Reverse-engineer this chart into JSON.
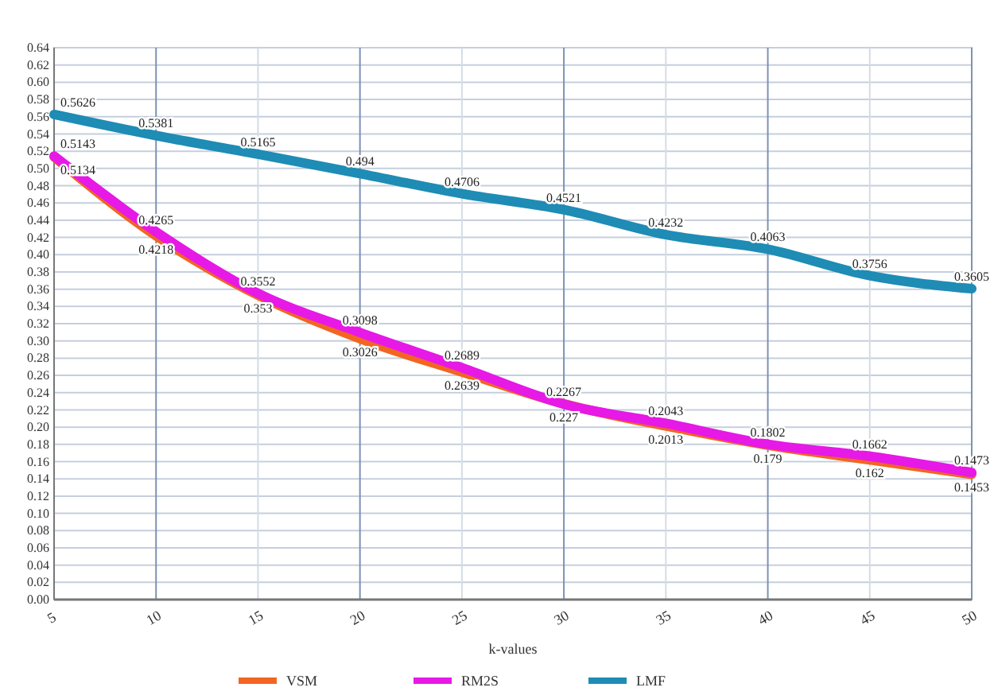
{
  "chart_data": {
    "type": "line",
    "xlabel": "k-values",
    "x": [
      5,
      10,
      15,
      20,
      25,
      30,
      35,
      40,
      45,
      50
    ],
    "series": [
      {
        "name": "VSM",
        "color": "#f26522",
        "values": [
          0.5134,
          0.4218,
          0.353,
          0.3026,
          0.2639,
          0.227,
          0.2013,
          0.179,
          0.162,
          0.1453
        ]
      },
      {
        "name": "RM2S",
        "color": "#e619e6",
        "values": [
          0.5143,
          0.4265,
          0.3552,
          0.3098,
          0.2689,
          0.2267,
          0.2043,
          0.1802,
          0.1662,
          0.1473
        ]
      },
      {
        "name": "LMF",
        "color": "#1e8cb4",
        "values": [
          0.5626,
          0.5381,
          0.5165,
          0.494,
          0.4706,
          0.4521,
          0.4232,
          0.4063,
          0.3756,
          0.3605
        ]
      }
    ],
    "data_labels": true,
    "xlim": [
      5,
      50
    ],
    "xticks": [
      5,
      10,
      15,
      20,
      25,
      30,
      35,
      40,
      45,
      50
    ],
    "ylim": [
      0,
      0.64
    ],
    "yticks": [
      {
        "value": 0,
        "label": "0.00"
      },
      {
        "value": 0.02,
        "label": "0.02"
      },
      {
        "value": 0.04,
        "label": "0.04"
      },
      {
        "value": 0.06,
        "label": "0.06"
      },
      {
        "value": 0.08,
        "label": "0.08"
      },
      {
        "value": 0.1,
        "label": "0.10"
      },
      {
        "value": 0.12,
        "label": "0.12"
      },
      {
        "value": 0.14,
        "label": "0.14"
      },
      {
        "value": 0.16,
        "label": "0.16"
      },
      {
        "value": 0.18,
        "label": "0.18"
      },
      {
        "value": 0.2,
        "label": "0.20"
      },
      {
        "value": 0.22,
        "label": "0.22"
      },
      {
        "value": 0.24,
        "label": "0.24"
      },
      {
        "value": 0.26,
        "label": "0.26"
      },
      {
        "value": 0.28,
        "label": "0.28"
      },
      {
        "value": 0.3,
        "label": "0.30"
      },
      {
        "value": 0.32,
        "label": "0.32"
      },
      {
        "value": 0.34,
        "label": "0.34"
      },
      {
        "value": 0.36,
        "label": "0.36"
      },
      {
        "value": 0.38,
        "label": "0.38"
      },
      {
        "value": 0.4,
        "label": "0.40"
      },
      {
        "value": 0.42,
        "label": "0.42"
      },
      {
        "value": 0.44,
        "label": "0.44"
      },
      {
        "value": 0.46,
        "label": "0.46"
      },
      {
        "value": 0.48,
        "label": "0.48"
      },
      {
        "value": 0.5,
        "label": "0.50"
      },
      {
        "value": 0.52,
        "label": "0.52"
      },
      {
        "value": 0.54,
        "label": "0.54"
      },
      {
        "value": 0.56,
        "label": "0.56"
      },
      {
        "value": 0.58,
        "label": "0.58"
      },
      {
        "value": 0.6,
        "label": "0.60"
      },
      {
        "value": 0.62,
        "label": "0.62"
      },
      {
        "value": 0.64,
        "label": "0.64"
      }
    ],
    "grid": true,
    "legend": "bottom"
  }
}
